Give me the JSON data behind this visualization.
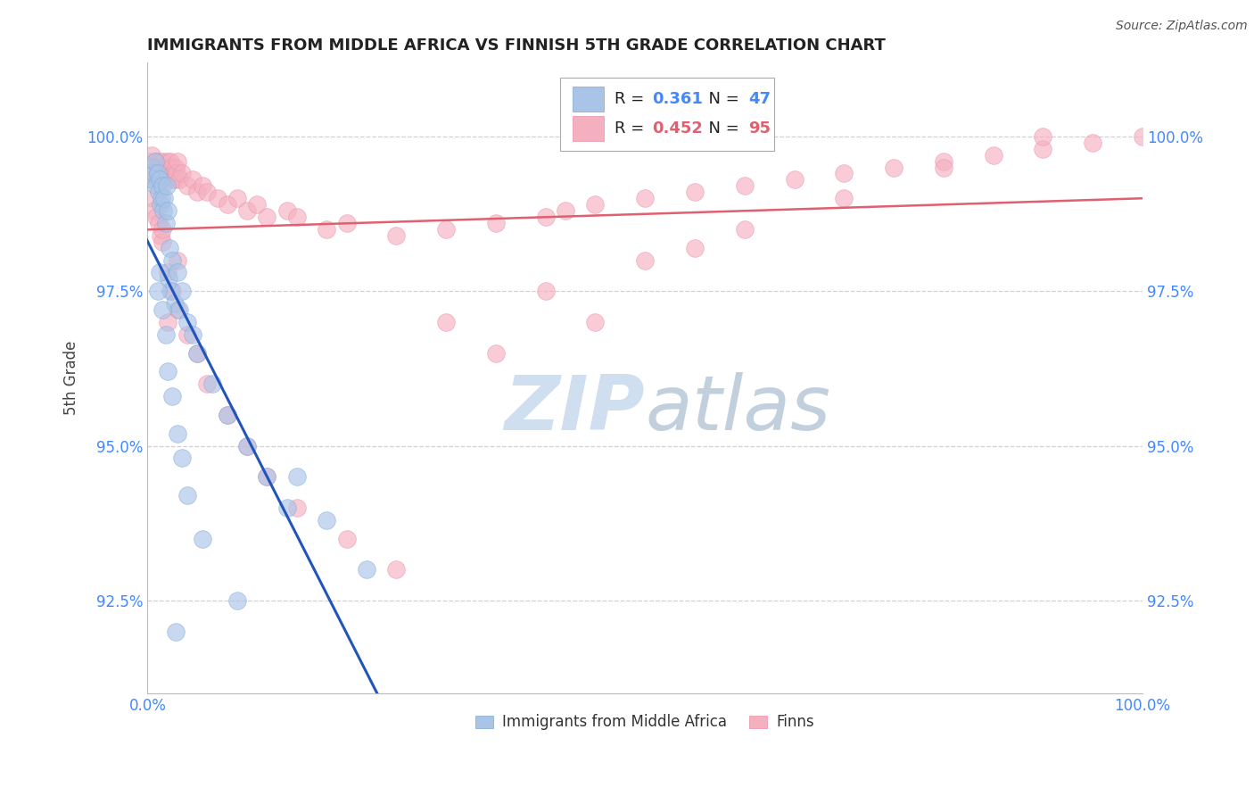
{
  "title": "IMMIGRANTS FROM MIDDLE AFRICA VS FINNISH 5TH GRADE CORRELATION CHART",
  "source": "Source: ZipAtlas.com",
  "ylabel": "5th Grade",
  "xlim": [
    0.0,
    100.0
  ],
  "ylim": [
    91.0,
    101.2
  ],
  "yticks": [
    92.5,
    95.0,
    97.5,
    100.0
  ],
  "ytick_labels": [
    "92.5%",
    "95.0%",
    "97.5%",
    "100.0%"
  ],
  "xtick_labels": [
    "0.0%",
    "",
    "",
    "",
    "100.0%"
  ],
  "blue_label": "Immigrants from Middle Africa",
  "pink_label": "Finns",
  "blue_R": 0.361,
  "blue_N": 47,
  "pink_R": 0.452,
  "pink_N": 95,
  "blue_color": "#aac4e8",
  "pink_color": "#f5b0c0",
  "blue_edge_color": "#7aaad8",
  "pink_edge_color": "#e890a8",
  "blue_line_color": "#2255bb",
  "pink_line_color": "#e06070",
  "watermark_color": "#d0dff0",
  "background_color": "#ffffff",
  "title_color": "#222222",
  "axis_label_color": "#444444",
  "tick_color": "#4488ff",
  "grid_color": "#cccccc",
  "legend_text_color": "#222222",
  "blue_x": [
    0.4,
    0.5,
    0.7,
    0.8,
    0.9,
    1.0,
    1.1,
    1.2,
    1.3,
    1.4,
    1.5,
    1.6,
    1.7,
    1.8,
    1.9,
    2.0,
    2.1,
    2.2,
    2.3,
    2.5,
    2.7,
    3.0,
    3.2,
    3.5,
    4.0,
    4.5,
    5.0,
    6.5,
    8.0,
    10.0,
    12.0,
    14.0,
    15.0,
    18.0,
    22.0,
    1.0,
    1.2,
    1.5,
    1.8,
    2.0,
    2.5,
    3.0,
    3.5,
    4.0,
    5.5,
    9.0,
    2.8
  ],
  "blue_y": [
    99.5,
    99.3,
    99.4,
    99.6,
    99.2,
    99.4,
    99.1,
    99.3,
    98.9,
    99.0,
    99.2,
    98.8,
    99.0,
    98.6,
    99.2,
    98.8,
    97.7,
    98.2,
    97.5,
    98.0,
    97.3,
    97.8,
    97.2,
    97.5,
    97.0,
    96.8,
    96.5,
    96.0,
    95.5,
    95.0,
    94.5,
    94.0,
    94.5,
    93.8,
    93.0,
    97.5,
    97.8,
    97.2,
    96.8,
    96.2,
    95.8,
    95.2,
    94.8,
    94.2,
    93.5,
    92.5,
    92.0
  ],
  "pink_x": [
    0.1,
    0.2,
    0.3,
    0.4,
    0.5,
    0.6,
    0.7,
    0.8,
    0.9,
    1.0,
    1.1,
    1.2,
    1.3,
    1.4,
    1.5,
    1.6,
    1.7,
    1.8,
    1.9,
    2.0,
    2.1,
    2.2,
    2.3,
    2.4,
    2.5,
    2.6,
    2.7,
    2.8,
    2.9,
    3.0,
    3.2,
    3.5,
    4.0,
    4.5,
    5.0,
    5.5,
    6.0,
    7.0,
    8.0,
    9.0,
    10.0,
    11.0,
    12.0,
    14.0,
    15.0,
    18.0,
    20.0,
    25.0,
    30.0,
    35.0,
    40.0,
    42.0,
    45.0,
    50.0,
    55.0,
    60.0,
    65.0,
    70.0,
    75.0,
    80.0,
    85.0,
    90.0,
    95.0,
    100.0,
    0.5,
    0.7,
    0.9,
    1.1,
    1.3,
    1.5,
    2.0,
    2.5,
    3.0,
    4.0,
    5.0,
    6.0,
    8.0,
    10.0,
    12.0,
    15.0,
    20.0,
    25.0,
    30.0,
    35.0,
    40.0,
    45.0,
    50.0,
    55.0,
    60.0,
    70.0,
    80.0,
    90.0,
    3.0,
    2.0,
    1.5
  ],
  "pink_y": [
    99.6,
    99.4,
    99.5,
    99.7,
    99.3,
    99.5,
    99.4,
    99.6,
    99.3,
    99.5,
    99.4,
    99.6,
    99.3,
    99.5,
    99.4,
    99.6,
    99.3,
    99.5,
    99.4,
    99.6,
    99.5,
    99.4,
    99.6,
    99.3,
    99.5,
    99.4,
    99.3,
    99.5,
    99.4,
    99.6,
    99.3,
    99.4,
    99.2,
    99.3,
    99.1,
    99.2,
    99.1,
    99.0,
    98.9,
    99.0,
    98.8,
    98.9,
    98.7,
    98.8,
    98.7,
    98.5,
    98.6,
    98.4,
    98.5,
    98.6,
    98.7,
    98.8,
    98.9,
    99.0,
    99.1,
    99.2,
    99.3,
    99.4,
    99.5,
    99.6,
    99.7,
    99.8,
    99.9,
    100.0,
    99.0,
    98.8,
    98.7,
    98.6,
    98.4,
    98.3,
    97.8,
    97.5,
    97.2,
    96.8,
    96.5,
    96.0,
    95.5,
    95.0,
    94.5,
    94.0,
    93.5,
    93.0,
    97.0,
    96.5,
    97.5,
    97.0,
    98.0,
    98.2,
    98.5,
    99.0,
    99.5,
    100.0,
    98.0,
    97.0,
    98.5
  ]
}
